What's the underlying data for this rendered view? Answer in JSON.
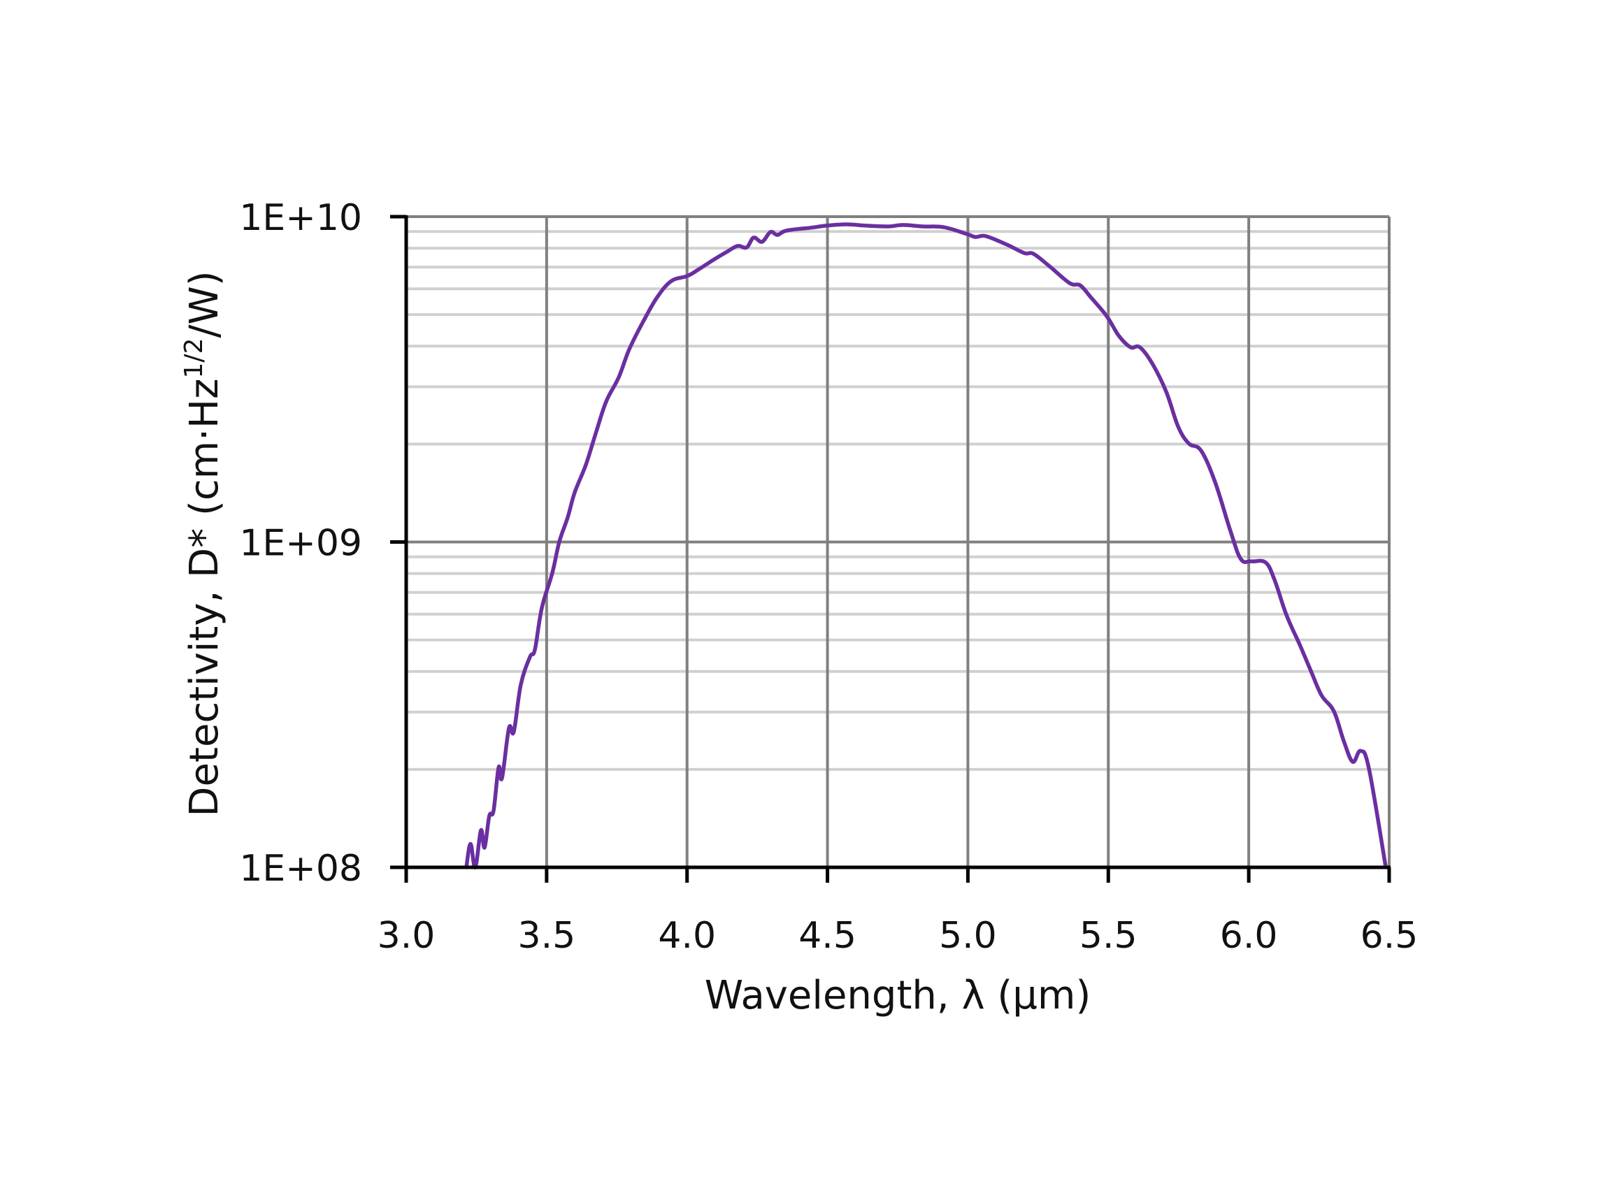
{
  "chart_data": {
    "type": "line",
    "title": "",
    "xlabel": "Wavelength, λ (μm)",
    "ylabel_main": "Detectivity, D* (cm·Hz",
    "ylabel_sup": "1/2",
    "ylabel_tail": "/W)",
    "ylabel": "Detectivity, D* (cm·Hz^1/2/W)",
    "xlim": [
      3.0,
      6.5
    ],
    "ylim": [
      100000000.0,
      10000000000.0
    ],
    "yscale": "log",
    "grid": true,
    "legend": null,
    "x_ticks": [
      "3.0",
      "3.5",
      "4.0",
      "4.5",
      "5.0",
      "5.5",
      "6.0",
      "6.5"
    ],
    "x_tick_values": [
      3.0,
      3.5,
      4.0,
      4.5,
      5.0,
      5.5,
      6.0,
      6.5
    ],
    "y_ticks": [
      "1E+08",
      "1E+09",
      "1E+10"
    ],
    "y_tick_values": [
      100000000.0,
      1000000000.0,
      10000000000.0
    ],
    "colors": {
      "line": "#6a2fa0",
      "major_grid": "#808080",
      "minor_grid": "#d0d0d0",
      "axis": "#000000"
    },
    "series": [
      {
        "name": "D*",
        "x": [
          3.214,
          3.229,
          3.246,
          3.266,
          3.279,
          3.296,
          3.311,
          3.329,
          3.341,
          3.366,
          3.383,
          3.408,
          3.441,
          3.458,
          3.483,
          3.52,
          3.545,
          3.575,
          3.6,
          3.64,
          3.675,
          3.712,
          3.757,
          3.794,
          3.844,
          3.894,
          3.944,
          4.001,
          4.043,
          4.093,
          4.143,
          4.18,
          4.212,
          4.237,
          4.267,
          4.297,
          4.322,
          4.354,
          4.441,
          4.496,
          4.566,
          4.64,
          4.715,
          4.77,
          4.84,
          4.914,
          4.997,
          5.026,
          5.064,
          5.138,
          5.201,
          5.233,
          5.288,
          5.362,
          5.4,
          5.437,
          5.494,
          5.537,
          5.579,
          5.612,
          5.656,
          5.706,
          5.748,
          5.786,
          5.83,
          5.88,
          5.935,
          5.972,
          6.01,
          6.06,
          6.092,
          6.134,
          6.184,
          6.221,
          6.259,
          6.303,
          6.338,
          6.37,
          6.398,
          6.428,
          6.488
        ],
        "values": [
          100000000.0,
          118000000.0,
          100000000.0,
          130000000.0,
          115000000.0,
          144000000.0,
          149000000.0,
          203000000.0,
          188000000.0,
          268000000.0,
          261000000.0,
          364000000.0,
          444000000.0,
          466000000.0,
          627000000.0,
          802000000.0,
          1000000000.0,
          1190000000.0,
          1420000000.0,
          1730000000.0,
          2160000000.0,
          2700000000.0,
          3210000000.0,
          3910000000.0,
          4760000000.0,
          5660000000.0,
          6340000000.0,
          6570000000.0,
          6900000000.0,
          7360000000.0,
          7810000000.0,
          8130000000.0,
          8040000000.0,
          8620000000.0,
          8370000000.0,
          8970000000.0,
          8790000000.0,
          9060000000.0,
          9250000000.0,
          9380000000.0,
          9470000000.0,
          9380000000.0,
          9330000000.0,
          9430000000.0,
          9330000000.0,
          9280000000.0,
          8840000000.0,
          8660000000.0,
          8710000000.0,
          8210000000.0,
          7730000000.0,
          7690000000.0,
          7070000000.0,
          6250000000.0,
          6150000000.0,
          5660000000.0,
          4950000000.0,
          4310000000.0,
          3970000000.0,
          3970000000.0,
          3540000000.0,
          2900000000.0,
          2270000000.0,
          2010000000.0,
          1910000000.0,
          1530000000.0,
          1080000000.0,
          886000000.0,
          872000000.0,
          865000000.0,
          764000000.0,
          597000000.0,
          478000000.0,
          402000000.0,
          338000000.0,
          302000000.0,
          245000000.0,
          211000000.0,
          228000000.0,
          201000000.0,
          100000000.0
        ]
      }
    ]
  }
}
